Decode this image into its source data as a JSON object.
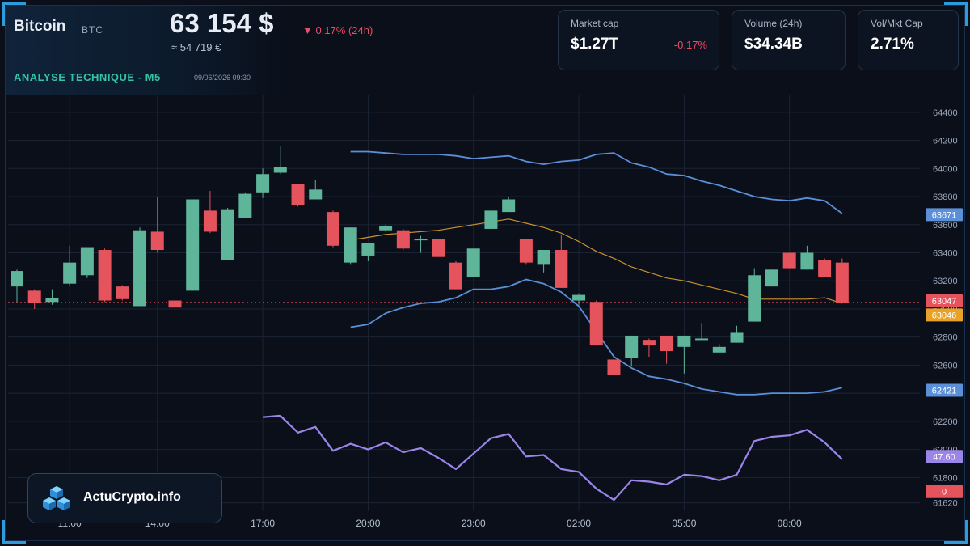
{
  "header": {
    "title": "Bitcoin",
    "ticker": "BTC",
    "price": "63 154 $",
    "change": "▼ 0.17% (24h)",
    "price_eur": "≈ 54 719 €",
    "analysis_label": "ANALYSE TECHNIQUE - M5",
    "datetime": "09/06/2026 09:30"
  },
  "stats": [
    {
      "label": "Market cap",
      "value": "$1.27T",
      "change": "-0.17%"
    },
    {
      "label": "Volume (24h)",
      "value": "$34.34B",
      "change": ""
    },
    {
      "label": "Vol/Mkt Cap",
      "value": "2.71%",
      "change": ""
    }
  ],
  "brand": {
    "name": "ActuCrypto.info"
  },
  "colors": {
    "up": "#5fb59a",
    "down": "#e5535d",
    "bollinger": "#5b8fd8",
    "sma": "#c9922e",
    "rsi": "#9b86e8",
    "accent": "#35c2a6"
  },
  "chart_data": {
    "type": "candlestick",
    "y_ticks": [
      61620,
      61800,
      62000,
      62200,
      62400,
      62600,
      62800,
      63000,
      63200,
      63400,
      63600,
      63800,
      64000,
      64200,
      64400
    ],
    "ylim": [
      61560,
      64520
    ],
    "x_ticks": [
      "11:00",
      "14:00",
      "17:00",
      "20:00",
      "23:00",
      "02:00",
      "05:00",
      "08:00"
    ],
    "x_tick_positions": [
      3,
      8,
      14,
      20,
      26,
      32,
      38,
      44
    ],
    "x_range": [
      0,
      48
    ],
    "candles": [
      {
        "x": 0,
        "o": 63160,
        "h": 63280,
        "l": 63050,
        "c": 63270
      },
      {
        "x": 1,
        "o": 63130,
        "h": 63140,
        "l": 63000,
        "c": 63040
      },
      {
        "x": 2,
        "o": 63050,
        "h": 63140,
        "l": 63030,
        "c": 63080
      },
      {
        "x": 3,
        "o": 63180,
        "h": 63450,
        "l": 63160,
        "c": 63330
      },
      {
        "x": 4,
        "o": 63240,
        "h": 63440,
        "l": 63220,
        "c": 63440
      },
      {
        "x": 5,
        "o": 63420,
        "h": 63430,
        "l": 63050,
        "c": 63060
      },
      {
        "x": 6,
        "o": 63160,
        "h": 63170,
        "l": 63060,
        "c": 63070
      },
      {
        "x": 7,
        "o": 63020,
        "h": 63580,
        "l": 63020,
        "c": 63560
      },
      {
        "x": 8,
        "o": 63550,
        "h": 63800,
        "l": 63400,
        "c": 63420
      },
      {
        "x": 9,
        "o": 63060,
        "h": 63060,
        "l": 62890,
        "c": 63010
      },
      {
        "x": 10,
        "o": 63130,
        "h": 63780,
        "l": 63130,
        "c": 63780
      },
      {
        "x": 11,
        "o": 63700,
        "h": 63840,
        "l": 63540,
        "c": 63550
      },
      {
        "x": 12,
        "o": 63350,
        "h": 63720,
        "l": 63350,
        "c": 63710
      },
      {
        "x": 13,
        "o": 63650,
        "h": 63830,
        "l": 63650,
        "c": 63820
      },
      {
        "x": 14,
        "o": 63830,
        "h": 64000,
        "l": 63790,
        "c": 63960
      },
      {
        "x": 15,
        "o": 63970,
        "h": 64160,
        "l": 63960,
        "c": 64010
      },
      {
        "x": 16,
        "o": 63890,
        "h": 63890,
        "l": 63730,
        "c": 63740
      },
      {
        "x": 17,
        "o": 63780,
        "h": 63920,
        "l": 63780,
        "c": 63850
      },
      {
        "x": 18,
        "o": 63690,
        "h": 63700,
        "l": 63440,
        "c": 63450
      },
      {
        "x": 19,
        "o": 63330,
        "h": 63580,
        "l": 63320,
        "c": 63580
      },
      {
        "x": 20,
        "o": 63380,
        "h": 63460,
        "l": 63340,
        "c": 63470
      },
      {
        "x": 21,
        "o": 63560,
        "h": 63600,
        "l": 63550,
        "c": 63590
      },
      {
        "x": 22,
        "o": 63560,
        "h": 63570,
        "l": 63420,
        "c": 63430
      },
      {
        "x": 23,
        "o": 63500,
        "h": 63520,
        "l": 63400,
        "c": 63500
      },
      {
        "x": 24,
        "o": 63500,
        "h": 63500,
        "l": 63370,
        "c": 63370
      },
      {
        "x": 25,
        "o": 63330,
        "h": 63340,
        "l": 63140,
        "c": 63140
      },
      {
        "x": 26,
        "o": 63230,
        "h": 63430,
        "l": 63230,
        "c": 63430
      },
      {
        "x": 27,
        "o": 63570,
        "h": 63720,
        "l": 63560,
        "c": 63700
      },
      {
        "x": 28,
        "o": 63690,
        "h": 63800,
        "l": 63690,
        "c": 63780
      },
      {
        "x": 29,
        "o": 63500,
        "h": 63500,
        "l": 63320,
        "c": 63330
      },
      {
        "x": 30,
        "o": 63320,
        "h": 63420,
        "l": 63260,
        "c": 63420
      },
      {
        "x": 31,
        "o": 63420,
        "h": 63530,
        "l": 63150,
        "c": 63150
      },
      {
        "x": 32,
        "o": 63060,
        "h": 63110,
        "l": 63030,
        "c": 63100
      },
      {
        "x": 33,
        "o": 63050,
        "h": 63060,
        "l": 62740,
        "c": 62740
      },
      {
        "x": 34,
        "o": 62640,
        "h": 62640,
        "l": 62470,
        "c": 62530
      },
      {
        "x": 35,
        "o": 62650,
        "h": 62810,
        "l": 62590,
        "c": 62810
      },
      {
        "x": 36,
        "o": 62780,
        "h": 62790,
        "l": 62660,
        "c": 62740
      },
      {
        "x": 37,
        "o": 62810,
        "h": 62810,
        "l": 62610,
        "c": 62700
      },
      {
        "x": 38,
        "o": 62730,
        "h": 62810,
        "l": 62540,
        "c": 62810
      },
      {
        "x": 39,
        "o": 62790,
        "h": 62900,
        "l": 62790,
        "c": 62790
      },
      {
        "x": 40,
        "o": 62690,
        "h": 62750,
        "l": 62690,
        "c": 62730
      },
      {
        "x": 41,
        "o": 62760,
        "h": 62880,
        "l": 62760,
        "c": 62830
      },
      {
        "x": 42,
        "o": 62910,
        "h": 63290,
        "l": 62910,
        "c": 63240
      },
      {
        "x": 43,
        "o": 63160,
        "h": 63280,
        "l": 63160,
        "c": 63280
      },
      {
        "x": 44,
        "o": 63400,
        "h": 63400,
        "l": 63290,
        "c": 63290
      },
      {
        "x": 45,
        "o": 63280,
        "h": 63450,
        "l": 63280,
        "c": 63400
      },
      {
        "x": 46,
        "o": 63350,
        "h": 63360,
        "l": 63230,
        "c": 63230
      },
      {
        "x": 47,
        "o": 63330,
        "h": 63360,
        "l": 63040,
        "c": 63040
      }
    ],
    "series": [
      {
        "kind": "bollinger_upper",
        "x": [
          19,
          20,
          21,
          22,
          23,
          24,
          25,
          26,
          27,
          28,
          29,
          30,
          31,
          32,
          33,
          34,
          35,
          36,
          37,
          38,
          39,
          40,
          41,
          42,
          43,
          44,
          45,
          46,
          47
        ],
        "values": [
          64120,
          64120,
          64110,
          64100,
          64100,
          64100,
          64090,
          64070,
          64080,
          64090,
          64050,
          64030,
          64050,
          64060,
          64100,
          64110,
          64040,
          64010,
          63960,
          63950,
          63910,
          63880,
          63840,
          63800,
          63780,
          63770,
          63790,
          63770,
          63680
        ]
      },
      {
        "kind": "bollinger_lower",
        "x": [
          19,
          20,
          21,
          22,
          23,
          24,
          25,
          26,
          27,
          28,
          29,
          30,
          31,
          32,
          33,
          34,
          35,
          36,
          37,
          38,
          39,
          40,
          41,
          42,
          43,
          44,
          45,
          46,
          47
        ],
        "values": [
          62870,
          62890,
          62970,
          63010,
          63040,
          63050,
          63080,
          63140,
          63140,
          63160,
          63210,
          63180,
          63120,
          63020,
          62840,
          62660,
          62580,
          62520,
          62500,
          62470,
          62430,
          62410,
          62390,
          62390,
          62400,
          62400,
          62400,
          62410,
          62440
        ]
      },
      {
        "kind": "sma",
        "x": [
          19,
          20,
          21,
          22,
          23,
          24,
          25,
          26,
          27,
          28,
          29,
          30,
          31,
          32,
          33,
          34,
          35,
          36,
          37,
          38,
          39,
          40,
          41,
          42,
          43,
          44,
          45,
          46,
          47
        ],
        "values": [
          63490,
          63510,
          63530,
          63540,
          63550,
          63560,
          63580,
          63600,
          63620,
          63640,
          63610,
          63580,
          63540,
          63480,
          63410,
          63360,
          63300,
          63260,
          63220,
          63200,
          63170,
          63140,
          63110,
          63070,
          63070,
          63070,
          63070,
          63080,
          63040
        ]
      },
      {
        "kind": "rsi_line",
        "x": [
          14,
          15,
          16,
          17,
          18,
          19,
          20,
          21,
          22,
          23,
          24,
          25,
          26,
          27,
          28,
          29,
          30,
          31,
          32,
          33,
          34,
          35,
          36,
          37,
          38,
          39,
          40,
          41,
          42,
          43,
          44,
          45,
          46,
          47
        ],
        "values": [
          62230,
          62240,
          62120,
          62160,
          61990,
          62040,
          62000,
          62050,
          61980,
          62010,
          61940,
          61860,
          61970,
          62080,
          62110,
          61950,
          61960,
          61860,
          61840,
          61720,
          61640,
          61780,
          61770,
          61750,
          61820,
          61810,
          61780,
          61820,
          62060,
          62090,
          62100,
          62140,
          62050,
          61930
        ]
      }
    ],
    "price_tags": [
      {
        "value": "63671",
        "y": 63671,
        "color": "#5b8fd8"
      },
      {
        "value": "63047",
        "y": 63057,
        "color": "#e5535d"
      },
      {
        "value": "63046",
        "y": 62957,
        "color": "#e9a227"
      },
      {
        "value": "62421",
        "y": 62421,
        "color": "#5b8fd8"
      },
      {
        "value": "47.60",
        "y": 61950,
        "color": "#9b86e8"
      },
      {
        "value": "0",
        "y": 61700,
        "color": "#e5535d"
      }
    ],
    "current_price_line": 63047
  }
}
